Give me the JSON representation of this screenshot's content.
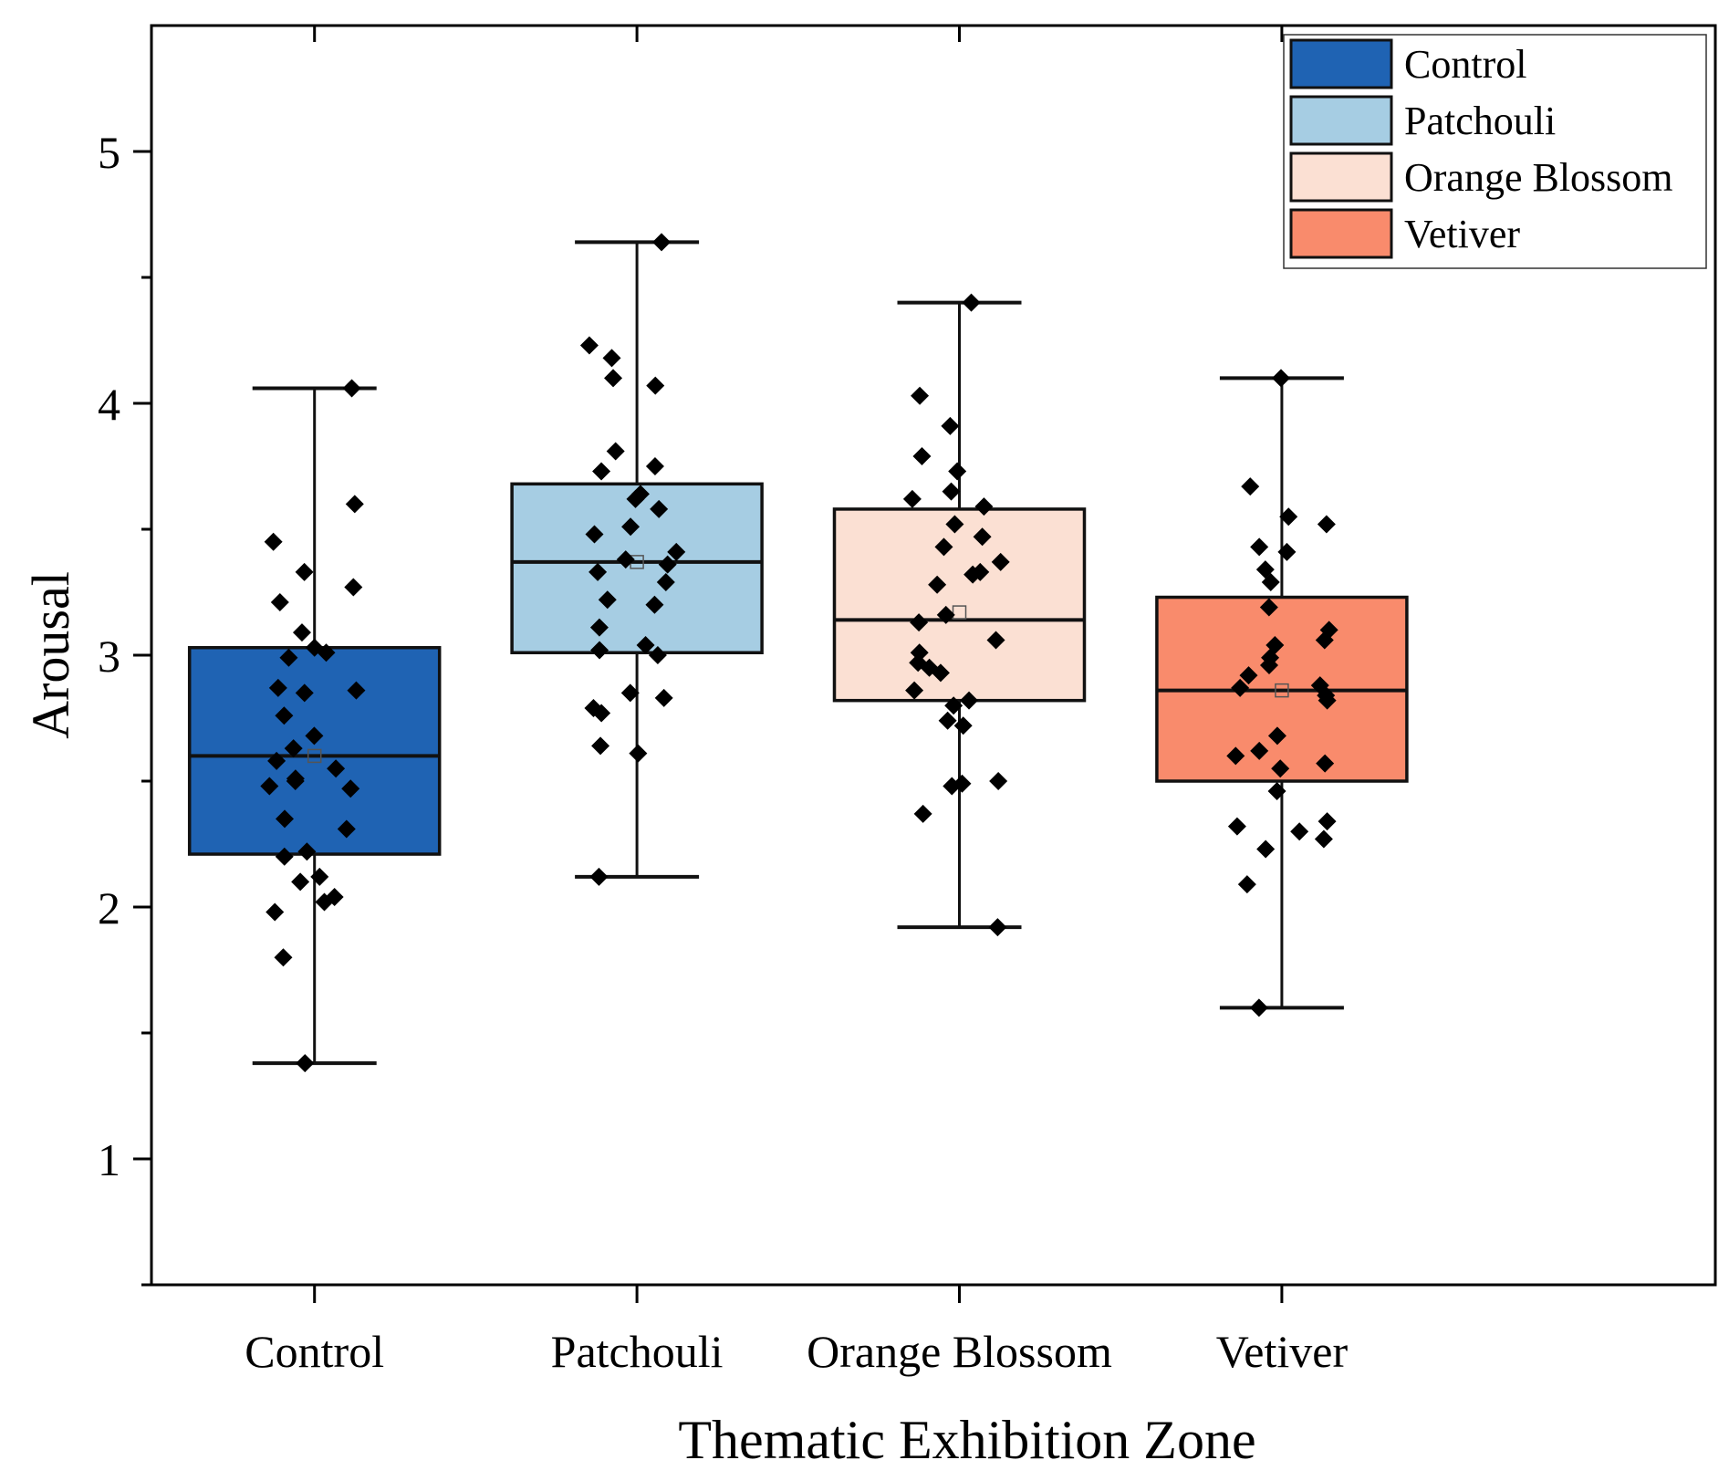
{
  "chart_data": {
    "type": "box",
    "title": "",
    "xlabel": "Thematic Exhibition Zone",
    "ylabel": "Arousal",
    "ylim": [
      0.5,
      5.5
    ],
    "yticks": [
      1,
      2,
      3,
      4,
      5
    ],
    "grid": false,
    "legend_position": "top-right",
    "categories": [
      "Control",
      "Patchouli",
      "Orange Blossom",
      "Vetiver"
    ],
    "series": [
      {
        "name": "Control",
        "color": "#1f63b3",
        "whisker_low": 1.38,
        "q1": 2.21,
        "median": 2.6,
        "q3": 3.03,
        "whisker_high": 4.06,
        "mean": 2.6,
        "points": [
          4.06,
          3.6,
          3.45,
          3.33,
          3.27,
          3.21,
          3.09,
          3.03,
          3.01,
          2.99,
          2.87,
          2.86,
          2.85,
          2.76,
          2.68,
          2.63,
          2.58,
          2.55,
          2.51,
          2.5,
          2.48,
          2.47,
          2.35,
          2.31,
          2.22,
          2.2,
          2.12,
          2.1,
          2.04,
          2.02,
          1.98,
          1.8,
          1.38
        ]
      },
      {
        "name": "Patchouli",
        "color": "#a6cde3",
        "whisker_low": 2.12,
        "q1": 3.01,
        "median": 3.37,
        "q3": 3.68,
        "whisker_high": 4.64,
        "mean": 3.37,
        "points": [
          4.64,
          4.23,
          4.18,
          4.1,
          4.07,
          3.81,
          3.75,
          3.73,
          3.64,
          3.62,
          3.58,
          3.51,
          3.48,
          3.41,
          3.38,
          3.36,
          3.33,
          3.29,
          3.22,
          3.2,
          3.11,
          3.04,
          3.02,
          3.0,
          2.85,
          2.83,
          2.79,
          2.77,
          2.64,
          2.61,
          2.12
        ]
      },
      {
        "name": "Orange Blossom",
        "color": "#fbe0d3",
        "whisker_low": 1.92,
        "q1": 2.82,
        "median": 3.14,
        "q3": 3.58,
        "whisker_high": 4.4,
        "mean": 3.17,
        "points": [
          4.4,
          4.03,
          3.91,
          3.79,
          3.73,
          3.65,
          3.62,
          3.59,
          3.52,
          3.47,
          3.43,
          3.37,
          3.33,
          3.32,
          3.28,
          3.16,
          3.13,
          3.06,
          3.01,
          2.97,
          2.95,
          2.93,
          2.86,
          2.82,
          2.8,
          2.74,
          2.72,
          2.5,
          2.49,
          2.48,
          2.37,
          1.92
        ]
      },
      {
        "name": "Vetiver",
        "color": "#f98b6c",
        "whisker_low": 1.6,
        "q1": 2.5,
        "median": 2.86,
        "q3": 3.23,
        "whisker_high": 4.1,
        "mean": 2.86,
        "points": [
          4.1,
          3.67,
          3.55,
          3.52,
          3.43,
          3.41,
          3.34,
          3.29,
          3.19,
          3.1,
          3.06,
          3.04,
          2.99,
          2.96,
          2.92,
          2.88,
          2.87,
          2.84,
          2.82,
          2.68,
          2.62,
          2.6,
          2.57,
          2.55,
          2.46,
          2.34,
          2.32,
          2.3,
          2.27,
          2.23,
          2.09,
          1.6
        ]
      }
    ]
  }
}
